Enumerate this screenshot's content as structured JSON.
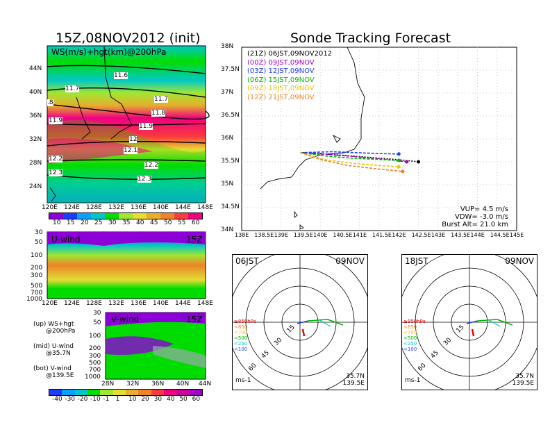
{
  "left_title": "15Z,08NOV2012 (init)",
  "right_title": "Sonde Tracking Forecast",
  "ws_panel": {
    "label": "WS(m/s)+hgt(km)@200hPa",
    "lat_ticks": [
      "44N",
      "40N",
      "36N",
      "32N",
      "28N",
      "24N"
    ],
    "lon_ticks": [
      "120E",
      "124E",
      "128E",
      "132E",
      "136E",
      "140E",
      "144E",
      "148E"
    ],
    "contour_labels": [
      "11.6",
      "11.7",
      ".8",
      "11.7",
      "11.8",
      "11.9",
      "11.9",
      "12",
      "12.1",
      "12.2",
      "12.2",
      "12.3",
      "12.3"
    ],
    "colorbar_labels": [
      "10",
      "15",
      "20",
      "25",
      "30",
      "35",
      "40",
      "45",
      "50",
      "55",
      "60"
    ],
    "colorbar_colors": [
      "#8c00d7",
      "#1e3cff",
      "#0aa0ff",
      "#00c8c8",
      "#00dc00",
      "#a0e632",
      "#e6dc32",
      "#e6af2d",
      "#f08228",
      "#fa3c3c",
      "#f00082"
    ]
  },
  "u_panel": {
    "label": "U-wind",
    "time": "15Z",
    "p_ticks": [
      "30",
      "50",
      "100",
      "200",
      "300",
      "500",
      "700",
      "1000"
    ],
    "lon_ticks": [
      "120E",
      "124E",
      "128E",
      "132E",
      "136E",
      "140E",
      "144E",
      "148E"
    ]
  },
  "v_panel": {
    "label": "V-wind",
    "time": "15Z",
    "p_ticks": [
      "30",
      "50",
      "100",
      "200",
      "300",
      "500",
      "700",
      "1000"
    ],
    "lat_ticks": [
      "28N",
      "32N",
      "36N",
      "40N",
      "44N"
    ],
    "colorbar_labels": [
      "-40",
      "-30",
      "-20",
      "-10",
      "-1",
      "1",
      "10",
      "20",
      "30",
      "40",
      "50",
      "60"
    ],
    "colorbar_colors": [
      "#1e3cff",
      "#0aa0ff",
      "#00c8c8",
      "#00dc00",
      "#a0e632",
      "#e6dc32",
      "#e6af2d",
      "#f08228",
      "#fa3c3c",
      "#f00082",
      "#c80096",
      "#a000c8"
    ]
  },
  "legend_notes": [
    {
      "line1": "(up) WS+hgt",
      "line2": "@200hPa"
    },
    {
      "line1": "(mid) U-wind",
      "line2": "@35.7N"
    },
    {
      "line1": "(bot) V-wind",
      "line2": "@139.5E"
    }
  ],
  "track_map": {
    "lat_ticks": [
      "38N",
      "37.5N",
      "37N",
      "36.5N",
      "36N",
      "35.5N",
      "35N",
      "34.5N",
      "34N"
    ],
    "lon_ticks": [
      "138E",
      "138.5E",
      "139E",
      "139.5E",
      "140E",
      "140.5E",
      "141E",
      "141.5E",
      "142E",
      "142.5E",
      "143E",
      "143.5E",
      "144E",
      "144.5E",
      "145E"
    ],
    "launches": [
      {
        "text": "(21Z)  06JST,09NOV2012",
        "color": "#000000"
      },
      {
        "text": "(00Z)  09JST,09NOV",
        "color": "#a000c8"
      },
      {
        "text": "(03Z)  12JST,09NOV",
        "color": "#1e3cff"
      },
      {
        "text": "(06Z)  15JST,09NOV",
        "color": "#00b400"
      },
      {
        "text": "(09Z)  18JST,09NOV",
        "color": "#e6c800"
      },
      {
        "text": "(12Z)  21JST,09NOV",
        "color": "#f08228"
      }
    ],
    "params": [
      "VUP= 4.5 m/s",
      "VDW= -3.0 m/s",
      "Burst Alt= 21.0 km"
    ]
  },
  "hodographs": [
    {
      "time": "06JST",
      "date": "09NOV",
      "unit": "ms-1",
      "lat": "35.7N",
      "lon": "139.5E",
      "ring_labels": [
        "15",
        "30",
        "45",
        "60"
      ],
      "levels": [
        {
          "t": "≥850hPa",
          "c": "#f00000"
        },
        {
          "t": "<850",
          "c": "#f08228"
        },
        {
          "t": "<700",
          "c": "#e6c800"
        },
        {
          "t": "<500",
          "c": "#00b400"
        },
        {
          "t": "<250",
          "c": "#00c8c8"
        },
        {
          "t": "<100",
          "c": "#1e3cff"
        }
      ]
    },
    {
      "time": "18JST",
      "date": "09NOV",
      "unit": "ms-1",
      "lat": "35.7N",
      "lon": "139.5E",
      "ring_labels": [
        "15",
        "30",
        "45",
        "60"
      ],
      "levels": [
        {
          "t": "≥850hPa",
          "c": "#f00000"
        },
        {
          "t": "<850",
          "c": "#f08228"
        },
        {
          "t": "<700",
          "c": "#e6c800"
        },
        {
          "t": "<500",
          "c": "#00b400"
        },
        {
          "t": "<250",
          "c": "#00c8c8"
        },
        {
          "t": "<100",
          "c": "#1e3cff"
        }
      ]
    }
  ],
  "chart_data": [
    {
      "type": "line",
      "title": "Sonde Tracking Forecast",
      "xlabel": "",
      "ylabel": "",
      "xlim": [
        138,
        145
      ],
      "ylim": [
        34,
        38
      ],
      "series": [
        {
          "name": "(21Z)  06JST,09NOV2012",
          "x": [
            139.5,
            140.0,
            140.6,
            141.2,
            141.8,
            142.3,
            142.5
          ],
          "y": [
            35.7,
            35.68,
            35.64,
            35.6,
            35.56,
            35.52,
            35.5
          ]
        },
        {
          "name": "(00Z)  09JST,09NOV",
          "x": [
            139.5,
            140.2,
            140.8,
            141.4,
            141.9,
            142.2
          ],
          "y": [
            35.7,
            35.66,
            35.62,
            35.57,
            35.53,
            35.5
          ]
        },
        {
          "name": "(03Z)  12JST,09NOV",
          "x": [
            139.5,
            140.3,
            140.9,
            141.5,
            142.0
          ],
          "y": [
            35.7,
            35.72,
            35.7,
            35.68,
            35.67
          ]
        },
        {
          "name": "(06Z)  15JST,09NOV",
          "x": [
            139.5,
            140.2,
            140.8,
            141.5,
            142.0
          ],
          "y": [
            35.7,
            35.62,
            35.58,
            35.55,
            35.53
          ]
        },
        {
          "name": "(09Z)  18JST,09NOV",
          "x": [
            139.5,
            140.1,
            140.8,
            141.5,
            142.0
          ],
          "y": [
            35.7,
            35.55,
            35.47,
            35.42,
            35.39
          ]
        },
        {
          "name": "(12Z)  21JST,09NOV",
          "x": [
            139.5,
            140.0,
            140.7,
            141.4,
            142.1
          ],
          "y": [
            35.7,
            35.55,
            35.42,
            35.35,
            35.29
          ]
        }
      ]
    }
  ]
}
